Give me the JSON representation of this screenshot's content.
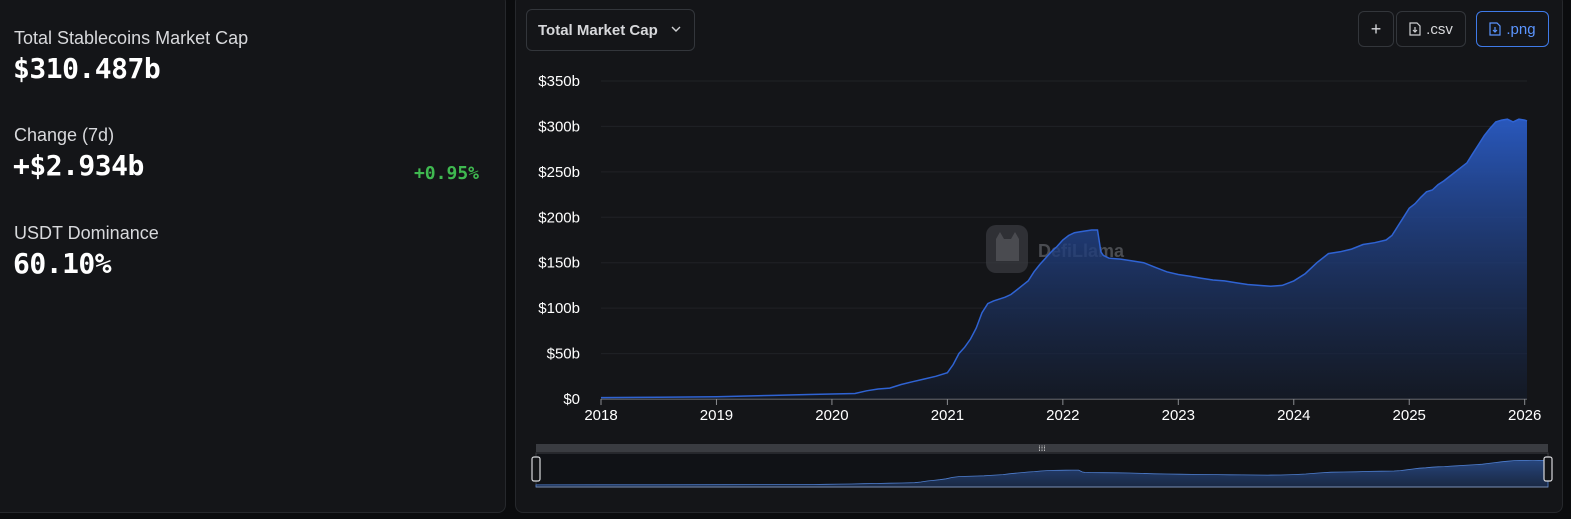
{
  "stats": {
    "total_label": "Total Stablecoins Market Cap",
    "total_value": "$310.487b",
    "change_label": "Change (7d)",
    "change_value": "+$2.934b",
    "change_pct": "+0.95%",
    "dominance_label": "USDT Dominance",
    "dominance_value": "60.10%"
  },
  "toolbar": {
    "dropdown_label": "Total Market Cap",
    "add_label": "+",
    "csv_label": ".csv",
    "png_label": ".png"
  },
  "colors": {
    "accent": "#3f7ae8",
    "positive": "#3fb950",
    "line": "#2f63d3"
  },
  "watermark": "DefiLlama",
  "icons": [
    "chevron-down-icon",
    "plus-icon",
    "download-icon",
    "logo-icon"
  ],
  "chart_data": {
    "type": "area",
    "x_ticks": [
      "2018",
      "2019",
      "2020",
      "2021",
      "2022",
      "2023",
      "2024",
      "2025",
      "2026"
    ],
    "y_ticks": [
      "$0",
      "$50b",
      "$100b",
      "$150b",
      "$200b",
      "$250b",
      "$300b",
      "$350b"
    ],
    "ylim": [
      0,
      350
    ],
    "xlim": [
      2018.0,
      2026.02
    ],
    "grid": true,
    "series": [
      {
        "x": [
          2018.0,
          2018.5,
          2019.0,
          2019.5,
          2019.8,
          2020.0,
          2020.2,
          2020.3,
          2020.4,
          2020.5,
          2020.6,
          2020.7,
          2020.8,
          2020.9,
          2021.0,
          2021.05,
          2021.1,
          2021.15,
          2021.2,
          2021.25,
          2021.3,
          2021.35,
          2021.4,
          2021.5,
          2021.55,
          2021.6,
          2021.65,
          2021.7,
          2021.75,
          2021.8,
          2021.85,
          2021.9,
          2021.95,
          2022.0,
          2022.05,
          2022.1,
          2022.15,
          2022.2,
          2022.25,
          2022.3,
          2022.33,
          2022.35,
          2022.4,
          2022.5,
          2022.6,
          2022.7,
          2022.8,
          2022.9,
          2023.0,
          2023.1,
          2023.2,
          2023.3,
          2023.4,
          2023.5,
          2023.6,
          2023.7,
          2023.8,
          2023.9,
          2024.0,
          2024.1,
          2024.2,
          2024.3,
          2024.4,
          2024.5,
          2024.6,
          2024.7,
          2024.8,
          2024.85,
          2024.9,
          2024.95,
          2025.0,
          2025.05,
          2025.1,
          2025.15,
          2025.2,
          2025.25,
          2025.3,
          2025.35,
          2025.4,
          2025.45,
          2025.5,
          2025.55,
          2025.6,
          2025.65,
          2025.7,
          2025.75,
          2025.8,
          2025.85,
          2025.9,
          2025.95,
          2026.0,
          2026.02
        ],
        "y": [
          1.5,
          2,
          2.5,
          4,
          5,
          5.5,
          6,
          9,
          11,
          12,
          16,
          19,
          22,
          25,
          29,
          38,
          50,
          57,
          66,
          78,
          95,
          105,
          108,
          112,
          115,
          120,
          125,
          130,
          140,
          148,
          155,
          162,
          168,
          175,
          180,
          183,
          184,
          185,
          186,
          186,
          162,
          158,
          155,
          154,
          152,
          150,
          145,
          140,
          137,
          135,
          133,
          131,
          130,
          128,
          126,
          125,
          124,
          125,
          130,
          138,
          150,
          160,
          162,
          165,
          170,
          172,
          175,
          180,
          190,
          200,
          210,
          215,
          222,
          228,
          230,
          236,
          240,
          245,
          250,
          255,
          260,
          270,
          280,
          290,
          298,
          305,
          307,
          308,
          305,
          308,
          307,
          306
        ]
      }
    ]
  }
}
